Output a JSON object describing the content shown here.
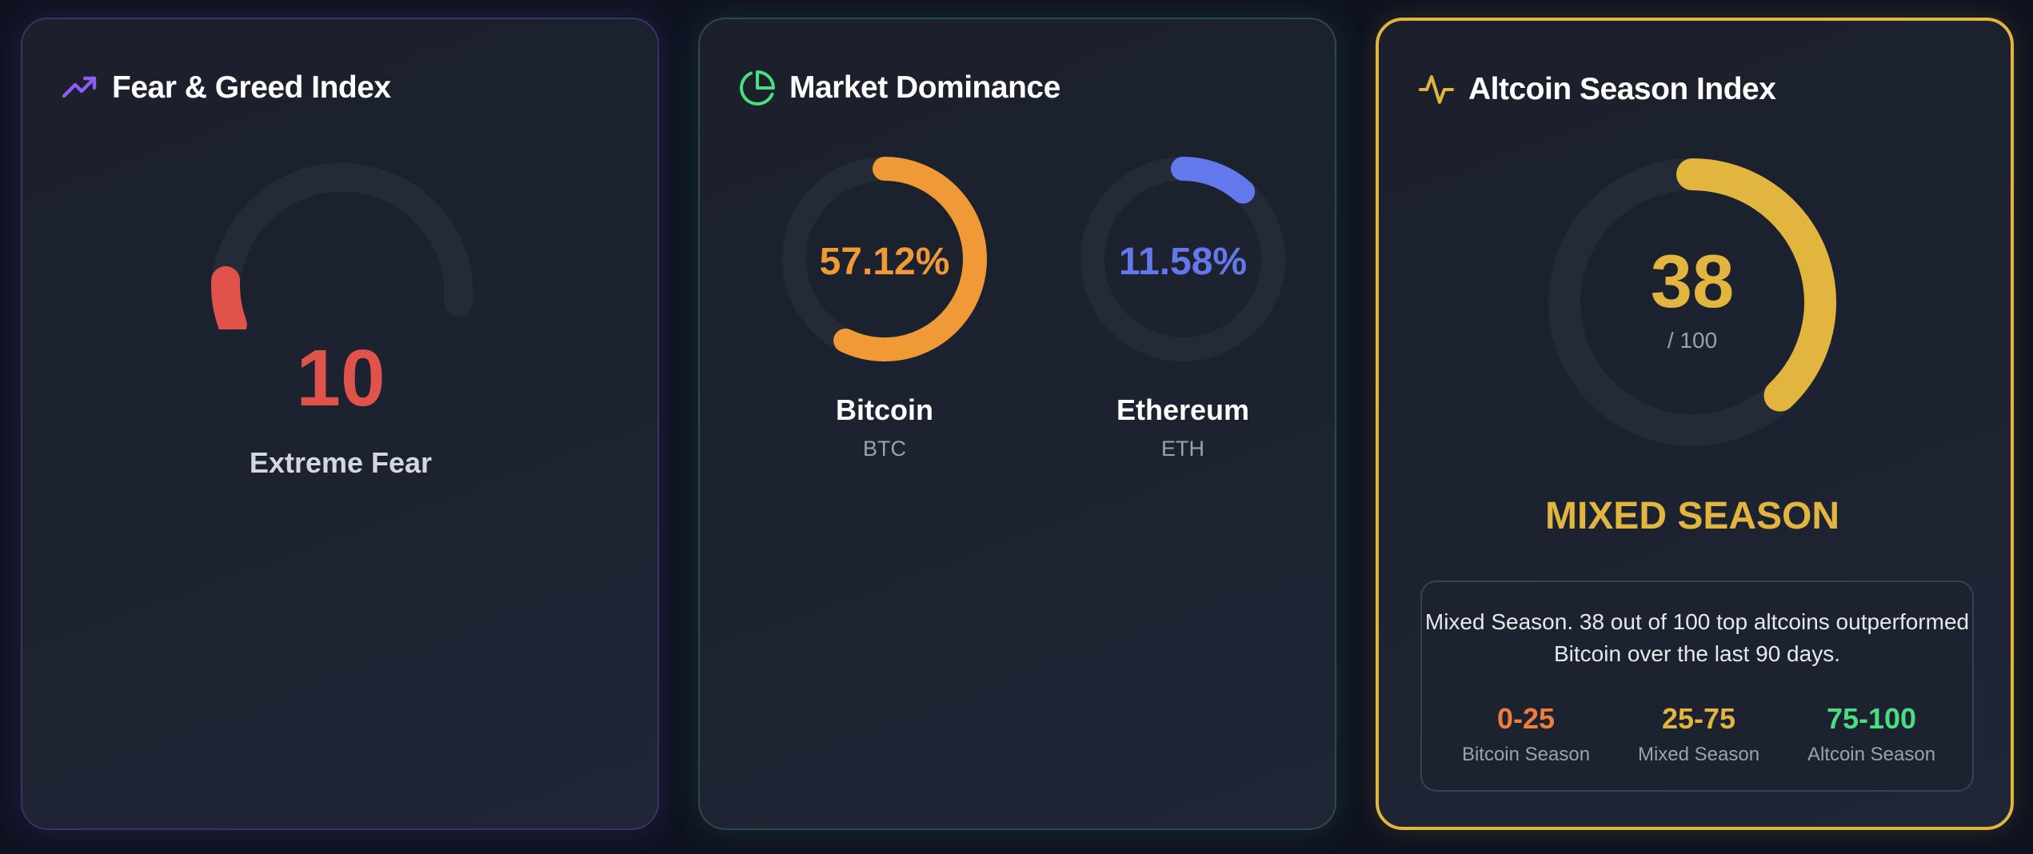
{
  "fear_greed": {
    "title": "Fear & Greed Index",
    "icon": "trending-up-icon",
    "value": "10",
    "value_fraction": 0.1,
    "label": "Extreme Fear",
    "accent": "#e0534b",
    "icon_color": "#8b5cf6"
  },
  "market_dominance": {
    "title": "Market Dominance",
    "icon": "pie-chart-icon",
    "icon_color": "#4ade80",
    "coins": [
      {
        "percent": "57.12%",
        "fraction": 0.5712,
        "name": "Bitcoin",
        "symbol": "BTC",
        "color": "#ef9a36"
      },
      {
        "percent": "11.58%",
        "fraction": 0.1158,
        "name": "Ethereum",
        "symbol": "ETH",
        "color": "#6378ea"
      }
    ]
  },
  "altcoin_season": {
    "title": "Altcoin Season Index",
    "icon": "activity-icon",
    "icon_color": "#e2b53f",
    "value": "38",
    "value_fraction": 0.38,
    "max_label": "/ 100",
    "season_label": "MIXED SEASON",
    "description": "Mixed Season. 38 out of 100 top altcoins outperformed Bitcoin over the last 90 days.",
    "ranges": [
      {
        "value": "0-25",
        "label": "Bitcoin Season",
        "color": "#f07d3a"
      },
      {
        "value": "25-75",
        "label": "Mixed Season",
        "color": "#e2b53f"
      },
      {
        "value": "75-100",
        "label": "Altcoin Season",
        "color": "#4ade80"
      }
    ],
    "accent": "#e2b53f"
  }
}
